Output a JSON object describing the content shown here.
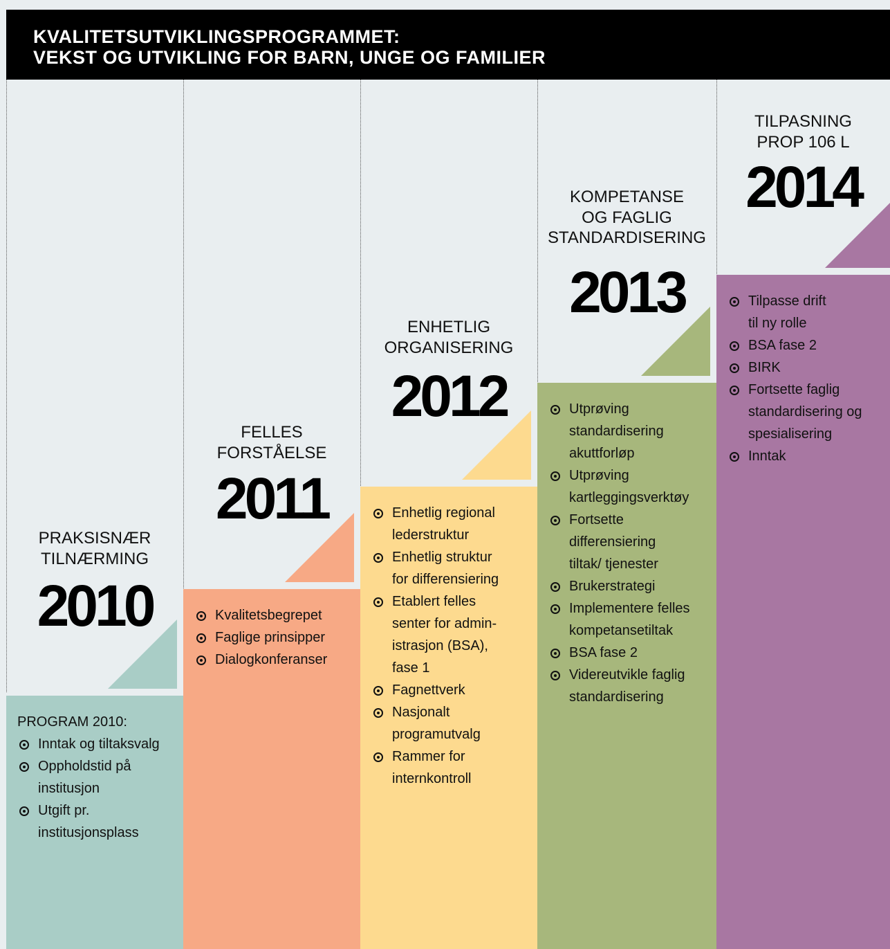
{
  "header": {
    "title": [
      "KVALITETSUTVIKLINGSPROGRAMMET:",
      "VEKST OG UTVIKLING FOR BARN, UNGE OG FAMILIER"
    ]
  },
  "columns": [
    {
      "label": [
        "PRAKSISNÆR",
        "TILNÆRMING"
      ],
      "year": "2010",
      "color": "#a9cdc6",
      "heading": "PROGRAM 2010:",
      "items": [
        [
          "Inntak og tiltaksvalg"
        ],
        [
          "Oppholdstid på",
          "institusjon"
        ],
        [
          "Utgift pr.",
          "institusjonsplass"
        ]
      ]
    },
    {
      "label": [
        "FELLES",
        "FORSTÅELSE"
      ],
      "year": "2011",
      "color": "#f7a985",
      "items": [
        [
          "Kvalitetsbegrepet"
        ],
        [
          "Faglige prinsipper"
        ],
        [
          "Dialogkonferanser"
        ]
      ]
    },
    {
      "label": [
        "ENHETLIG",
        "ORGANISERING"
      ],
      "year": "2012",
      "color": "#fdda8f",
      "items": [
        [
          "Enhetlig regional",
          "lederstruktur"
        ],
        [
          "Enhetlig struktur",
          "for differensiering"
        ],
        [
          "Etablert felles",
          "senter for admin-",
          "istrasjon (BSA),",
          "fase 1"
        ],
        [
          "Fagnettverk"
        ],
        [
          "Nasjonalt",
          "programutvalg"
        ],
        [
          "Rammer for",
          "internkontroll"
        ]
      ]
    },
    {
      "label": [
        "KOMPETANSE",
        "OG FAGLIG",
        "STANDARDISERING"
      ],
      "year": "2013",
      "color": "#a7b77c",
      "items": [
        [
          "Utprøving",
          "standardisering",
          "akuttforløp"
        ],
        [
          "Utprøving",
          "kartleggingsverktøy"
        ],
        [
          "Fortsette",
          "differensiering",
          "tiltak/ tjenester"
        ],
        [
          "Brukerstrategi"
        ],
        [
          "Implementere felles",
          "kompetansetiltak"
        ],
        [
          "BSA fase 2"
        ],
        [
          "Videreutvikle faglig",
          "standardisering"
        ]
      ]
    },
    {
      "label": [
        "TILPASNING",
        "PROP 106 L"
      ],
      "year": "2014",
      "color": "#a877a2",
      "items": [
        [
          "Tilpasse drift",
          "til ny rolle"
        ],
        [
          "BSA fase 2"
        ],
        [
          "BIRK"
        ],
        [
          "Fortsette faglig",
          "standardisering og",
          "spesialisering"
        ],
        [
          "Inntak"
        ]
      ]
    }
  ]
}
